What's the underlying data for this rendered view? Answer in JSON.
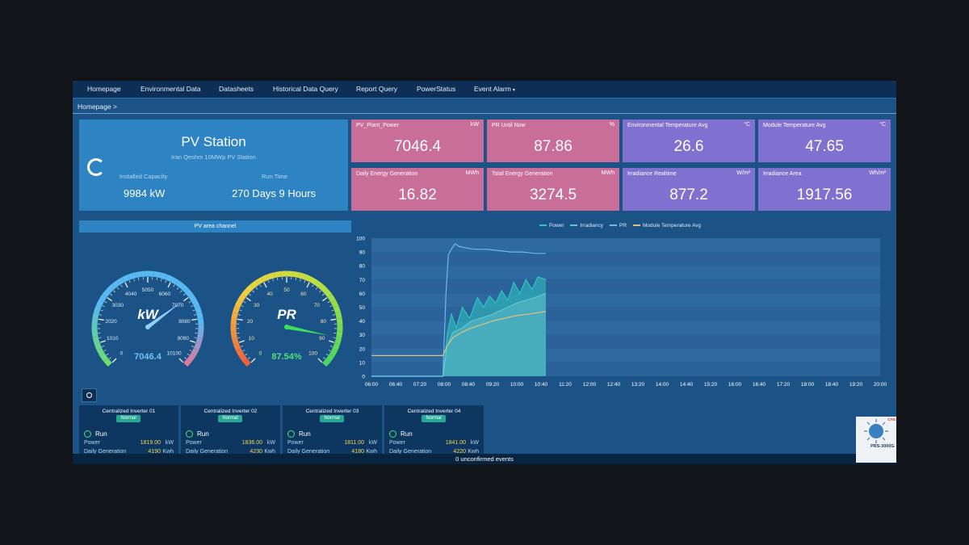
{
  "nav": [
    "Homepage",
    "Environmental Data",
    "Datasheets",
    "Historical Data Query",
    "Report Query",
    "PowerStatus",
    "Event Alarm"
  ],
  "breadcrumb": "Homepage >",
  "station": {
    "title": "PV Station",
    "subtitle": "Iran Qeshm 10MWp PV Station",
    "installed_label": "Installed Capacity",
    "installed_value": "9984 kW",
    "runtime_label": "Run Time",
    "runtime_value": "270 Days 9 Hours"
  },
  "cards": [
    {
      "label": "PV_Plant_Power",
      "unit": "kW",
      "value": "7046.4",
      "color": "#c96d99"
    },
    {
      "label": "PR Until Now",
      "unit": "%",
      "value": "87.86",
      "color": "#c96d99"
    },
    {
      "label": "Environmental Temperature Avg",
      "unit": "°C",
      "value": "26.6",
      "color": "#8071d0"
    },
    {
      "label": "Module Temperature Avg",
      "unit": "°C",
      "value": "47.65",
      "color": "#8071d0"
    },
    {
      "label": "Daily Energy Generation",
      "unit": "MWh",
      "value": "16.82",
      "color": "#c96d99"
    },
    {
      "label": "Total Energy Generation",
      "unit": "MWh",
      "value": "3274.5",
      "color": "#c96d99"
    },
    {
      "label": "Irradiance Realtime",
      "unit": "W/m²",
      "value": "877.2",
      "color": "#8071d0"
    },
    {
      "label": "Irradiance Area",
      "unit": "Wh/m²",
      "value": "1917.56",
      "color": "#8071d0"
    }
  ],
  "channel_button": "PV area channel",
  "gauge_kw": {
    "unit": "kW",
    "value": 7046.4,
    "value_text": "7046.4",
    "max": 10100,
    "ticks": [
      "0",
      "1010",
      "2020",
      "3030",
      "4040",
      "5050",
      "6060",
      "7070",
      "8080",
      "9090",
      "10100"
    ]
  },
  "gauge_pr": {
    "unit": "PR",
    "value": 87.54,
    "value_text": "87.54%",
    "max": 100,
    "ticks": [
      "0",
      "10",
      "20",
      "30",
      "40",
      "50",
      "60",
      "70",
      "80",
      "90",
      "100"
    ]
  },
  "chart_data": {
    "type": "line",
    "legend": [
      "Power",
      "Irradiancy",
      "PR",
      "Module Temperature Avg"
    ],
    "legend_position": "top-center",
    "ylim": [
      0,
      100
    ],
    "yticks": [
      0,
      10,
      20,
      30,
      40,
      50,
      60,
      70,
      80,
      90,
      100
    ],
    "xticks": [
      "06:00",
      "06:40",
      "07:20",
      "08:00",
      "08:40",
      "09:20",
      "10:00",
      "10:40",
      "11:20",
      "12:00",
      "12:40",
      "13:20",
      "14:00",
      "14:40",
      "15:20",
      "16:00",
      "16:40",
      "17:20",
      "18:00",
      "18:40",
      "19:20",
      "20:00"
    ],
    "series": [
      {
        "name": "Power",
        "color": "#2fc4c0",
        "x": [
          "06:00",
          "07:30",
          "07:58",
          "08:05",
          "08:12",
          "08:20",
          "08:30",
          "08:42",
          "08:55",
          "09:05",
          "09:15",
          "09:25",
          "09:35",
          "09:45",
          "09:55",
          "10:05",
          "10:15",
          "10:25",
          "10:35",
          "10:48"
        ],
        "values": [
          0,
          0,
          0,
          30,
          45,
          35,
          50,
          42,
          57,
          50,
          58,
          53,
          62,
          55,
          68,
          60,
          70,
          63,
          72,
          70
        ]
      },
      {
        "name": "Irradiancy",
        "color": "#5fc7cf",
        "x": [
          "06:00",
          "07:30",
          "07:58",
          "08:05",
          "08:15",
          "08:30",
          "08:45",
          "09:00",
          "09:15",
          "09:30",
          "09:45",
          "10:00",
          "10:15",
          "10:30",
          "10:48"
        ],
        "values": [
          0,
          0,
          0,
          22,
          32,
          35,
          40,
          42,
          44,
          47,
          50,
          53,
          55,
          57,
          60
        ]
      },
      {
        "name": "PR",
        "color": "#72b6ec",
        "x": [
          "06:00",
          "07:58",
          "08:03",
          "08:07",
          "08:12",
          "08:18",
          "08:25",
          "08:35",
          "08:50",
          "09:10",
          "09:30",
          "09:50",
          "10:10",
          "10:30",
          "10:48"
        ],
        "values": [
          0,
          0,
          60,
          88,
          92,
          96,
          94,
          93,
          92,
          92,
          91,
          90,
          90,
          89,
          89
        ]
      },
      {
        "name": "Module Temperature Avg",
        "color": "#e0c080",
        "x": [
          "06:00",
          "07:00",
          "07:40",
          "07:58",
          "08:05",
          "08:15",
          "08:30",
          "08:45",
          "09:00",
          "09:20",
          "09:40",
          "10:00",
          "10:20",
          "10:48"
        ],
        "values": [
          15,
          15,
          15,
          15,
          22,
          28,
          32,
          35,
          37,
          40,
          42,
          44,
          45,
          47
        ]
      }
    ]
  },
  "inverters": [
    {
      "name": "Centralized Inverter 01",
      "status": "Normal",
      "state": "Run",
      "power_label": "Power",
      "power": "1819.00",
      "power_unit": "kW",
      "gen_label": "Daily Generation",
      "gen": "4190",
      "gen_unit": "Kwh"
    },
    {
      "name": "Centralized Inverter 02",
      "status": "Normal",
      "state": "Run",
      "power_label": "Power",
      "power": "1836.00",
      "power_unit": "kW",
      "gen_label": "Daily Generation",
      "gen": "4230",
      "gen_unit": "Kwh"
    },
    {
      "name": "Centralized Inverter 03",
      "status": "Normal",
      "state": "Run",
      "power_label": "Power",
      "power": "1811.00",
      "power_unit": "kW",
      "gen_label": "Daily Generation",
      "gen": "4180",
      "gen_unit": "Kwh"
    },
    {
      "name": "Centralized Inverter 04",
      "status": "Normal",
      "state": "Run",
      "power_label": "Power",
      "power": "1841.00",
      "power_unit": "kW",
      "gen_label": "Daily Generation",
      "gen": "4220",
      "gen_unit": "Kwh"
    }
  ],
  "events": "0 unconfirmed events",
  "logo": {
    "text": "PRS-3000G",
    "tag": "CYG"
  }
}
